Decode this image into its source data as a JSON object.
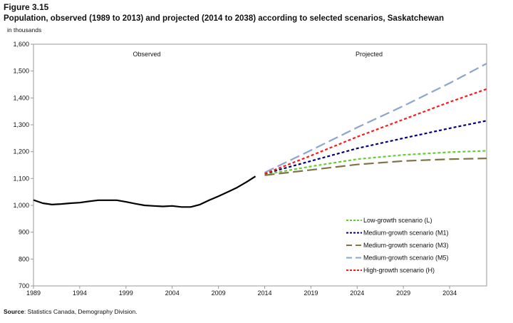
{
  "figure_label": "Figure 3.15",
  "source_label": "Source",
  "source_text": ": Statistics Canada, Demography Division.",
  "chart_data": {
    "type": "line",
    "title": "Population, observed (1989 to 2013) and projected (2014 to 2038) according to selected scenarios, Saskatchewan",
    "ylabel": "in thousands",
    "xlabel": "",
    "ylim": [
      700,
      1600
    ],
    "xlim": [
      1989,
      2038
    ],
    "yticks": [
      "700",
      "800",
      "900",
      "1,000",
      "1,100",
      "1,200",
      "1,300",
      "1,400",
      "1,500",
      "1,600"
    ],
    "ytick_values": [
      700,
      800,
      900,
      1000,
      1100,
      1200,
      1300,
      1400,
      1500,
      1600
    ],
    "xticks": [
      "1989",
      "1994",
      "1999",
      "2004",
      "2009",
      "2014",
      "2019",
      "2024",
      "2029",
      "2034"
    ],
    "annotations": {
      "observed": "Observed",
      "projected": "Projected"
    },
    "legend_position": "bottom-right",
    "observed": {
      "name": "Observed",
      "color": "#000000",
      "x": [
        1989,
        1990,
        1991,
        1992,
        1993,
        1994,
        1995,
        1996,
        1997,
        1998,
        1999,
        2000,
        2001,
        2002,
        2003,
        2004,
        2005,
        2006,
        2007,
        2008,
        2009,
        2010,
        2011,
        2012,
        2013
      ],
      "y": [
        1020,
        1008,
        1003,
        1005,
        1008,
        1010,
        1015,
        1019,
        1019,
        1019,
        1013,
        1006,
        1000,
        998,
        996,
        998,
        994,
        994,
        1003,
        1019,
        1034,
        1050,
        1066,
        1086,
        1108
      ]
    },
    "series": [
      {
        "name": "Low-growth scenario (L)",
        "color": "#66cc33",
        "dash": "4,3",
        "x": [
          2014,
          2019,
          2024,
          2029,
          2034,
          2038
        ],
        "y": [
          1115,
          1145,
          1172,
          1188,
          1198,
          1203
        ]
      },
      {
        "name": "Medium-growth scenario (M1)",
        "color": "#000080",
        "dash": "4,3",
        "x": [
          2014,
          2019,
          2024,
          2029,
          2034,
          2038
        ],
        "y": [
          1118,
          1165,
          1212,
          1250,
          1287,
          1315
        ]
      },
      {
        "name": "Medium-growth scenario (M3)",
        "color": "#7f7348",
        "dash": "14,6",
        "x": [
          2014,
          2019,
          2024,
          2029,
          2034,
          2038
        ],
        "y": [
          1112,
          1132,
          1152,
          1165,
          1172,
          1175
        ]
      },
      {
        "name": "Medium-growth scenario (M5)",
        "color": "#8aa5d0",
        "dash": "14,6",
        "x": [
          2014,
          2019,
          2024,
          2029,
          2034,
          2038
        ],
        "y": [
          1122,
          1205,
          1290,
          1370,
          1455,
          1528
        ]
      },
      {
        "name": "High-growth scenario (H)",
        "color": "#ff1a1a",
        "dash": "4,3",
        "x": [
          2014,
          2019,
          2024,
          2029,
          2034,
          2038
        ],
        "y": [
          1118,
          1185,
          1255,
          1320,
          1385,
          1433
        ]
      }
    ]
  }
}
